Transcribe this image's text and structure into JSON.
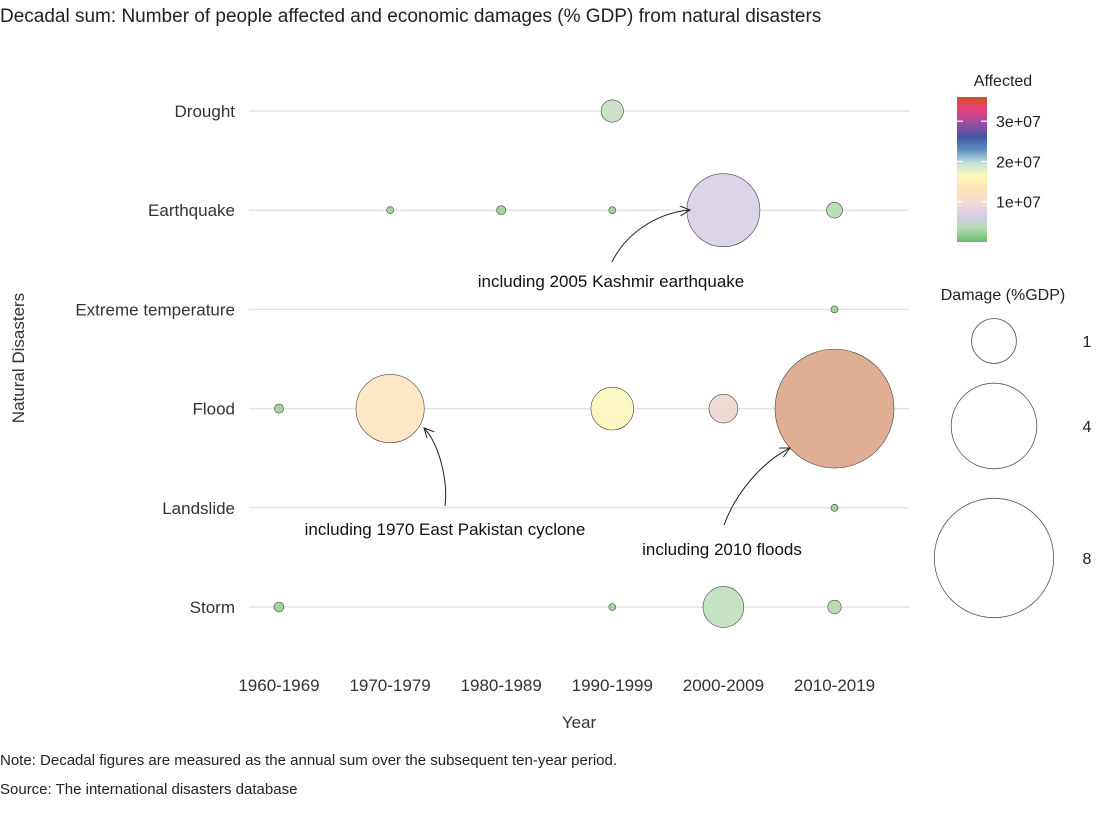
{
  "title": "Decadal sum: Number of people affected and economic damages (% GDP) from natural disasters",
  "notes": {
    "note": "Note: Decadal figures are measured as the annual sum over the subsequent ten-year period.",
    "source": "Source: The international disasters database"
  },
  "chart_data": {
    "type": "scatter",
    "title": "Decadal sum: Number of people affected and economic damages (% GDP) from natural disasters",
    "xlabel": "Year",
    "ylabel": "Natural Disasters",
    "x_categories": [
      "1960-1969",
      "1970-1979",
      "1980-1989",
      "1990-1999",
      "2000-2009",
      "2010-2019"
    ],
    "y_categories": [
      "Drought",
      "Earthquake",
      "Extreme temperature",
      "Flood",
      "Landslide",
      "Storm"
    ],
    "grid": "horizontal",
    "points": [
      {
        "x": "1990-1999",
        "y": "Drought",
        "damage": 0.3,
        "affected": 600000,
        "color": "#c5dfc2"
      },
      {
        "x": "1970-1979",
        "y": "Earthquake",
        "damage": 0.02,
        "affected": 10000,
        "color": "#98cf93"
      },
      {
        "x": "1980-1989",
        "y": "Earthquake",
        "damage": 0.05,
        "affected": 20000,
        "color": "#98cf93"
      },
      {
        "x": "1990-1999",
        "y": "Earthquake",
        "damage": 0.03,
        "affected": 20000,
        "color": "#98cf93"
      },
      {
        "x": "2000-2009",
        "y": "Earthquake",
        "damage": 3.2,
        "affected": 6000000,
        "color": "#d8d0e7"
      },
      {
        "x": "2010-2019",
        "y": "Earthquake",
        "damage": 0.15,
        "affected": 300000,
        "color": "#b6dcb0"
      },
      {
        "x": "2010-2019",
        "y": "Extreme temperature",
        "damage": 0.03,
        "affected": 20000,
        "color": "#98cf93"
      },
      {
        "x": "1960-1969",
        "y": "Flood",
        "damage": 0.05,
        "affected": 100000,
        "color": "#98cf93"
      },
      {
        "x": "1970-1979",
        "y": "Flood",
        "damage": 2.8,
        "affected": 14000000,
        "color": "#fde4bf"
      },
      {
        "x": "1990-1999",
        "y": "Flood",
        "damage": 1.1,
        "affected": 17000000,
        "color": "#fdf6be"
      },
      {
        "x": "2000-2009",
        "y": "Flood",
        "damage": 0.5,
        "affected": 8000000,
        "color": "#ecd5ce"
      },
      {
        "x": "2010-2019",
        "y": "Flood",
        "damage": 8.5,
        "affected": 13000000,
        "color": "#dca587"
      },
      {
        "x": "2010-2019",
        "y": "Landslide",
        "damage": 0.02,
        "affected": 10000,
        "color": "#98cf93"
      },
      {
        "x": "1960-1969",
        "y": "Storm",
        "damage": 0.06,
        "affected": 100000,
        "color": "#98cf93"
      },
      {
        "x": "1990-1999",
        "y": "Storm",
        "damage": 0.02,
        "affected": 10000,
        "color": "#98cf93"
      },
      {
        "x": "2000-2009",
        "y": "Storm",
        "damage": 1.0,
        "affected": 1500000,
        "color": "#bfdfbb"
      },
      {
        "x": "2010-2019",
        "y": "Storm",
        "damage": 0.11,
        "affected": 200000,
        "color": "#b0d9aa"
      }
    ],
    "annotations": [
      {
        "text": "including 2005 Kashmir earthquake",
        "target": {
          "x": "2000-2009",
          "y": "Earthquake"
        }
      },
      {
        "text": "including 1970 East Pakistan cyclone",
        "target": {
          "x": "1970-1979",
          "y": "Flood"
        }
      },
      {
        "text": "including 2010 floods",
        "target": {
          "x": "2010-2019",
          "y": "Flood"
        }
      }
    ],
    "legend_color": {
      "title": "Affected",
      "ticks": [
        "3e+07",
        "2e+07",
        "1e+07"
      ],
      "tick_values": [
        30000000,
        20000000,
        10000000
      ],
      "range": [
        0,
        36000000
      ],
      "colors_bottom_to_top": [
        "#66bb6a",
        "#b3dbb0",
        "#d7cde8",
        "#f2dbd4",
        "#fde3b4",
        "#fef7b7",
        "#c2e0da",
        "#5f8fbf",
        "#4454a3",
        "#9a4da1",
        "#e5407f",
        "#d0502a"
      ]
    },
    "legend_size": {
      "title": "Damage (%GDP)",
      "values": [
        1,
        4,
        8
      ],
      "labels": [
        "1",
        "4",
        "8"
      ]
    }
  }
}
